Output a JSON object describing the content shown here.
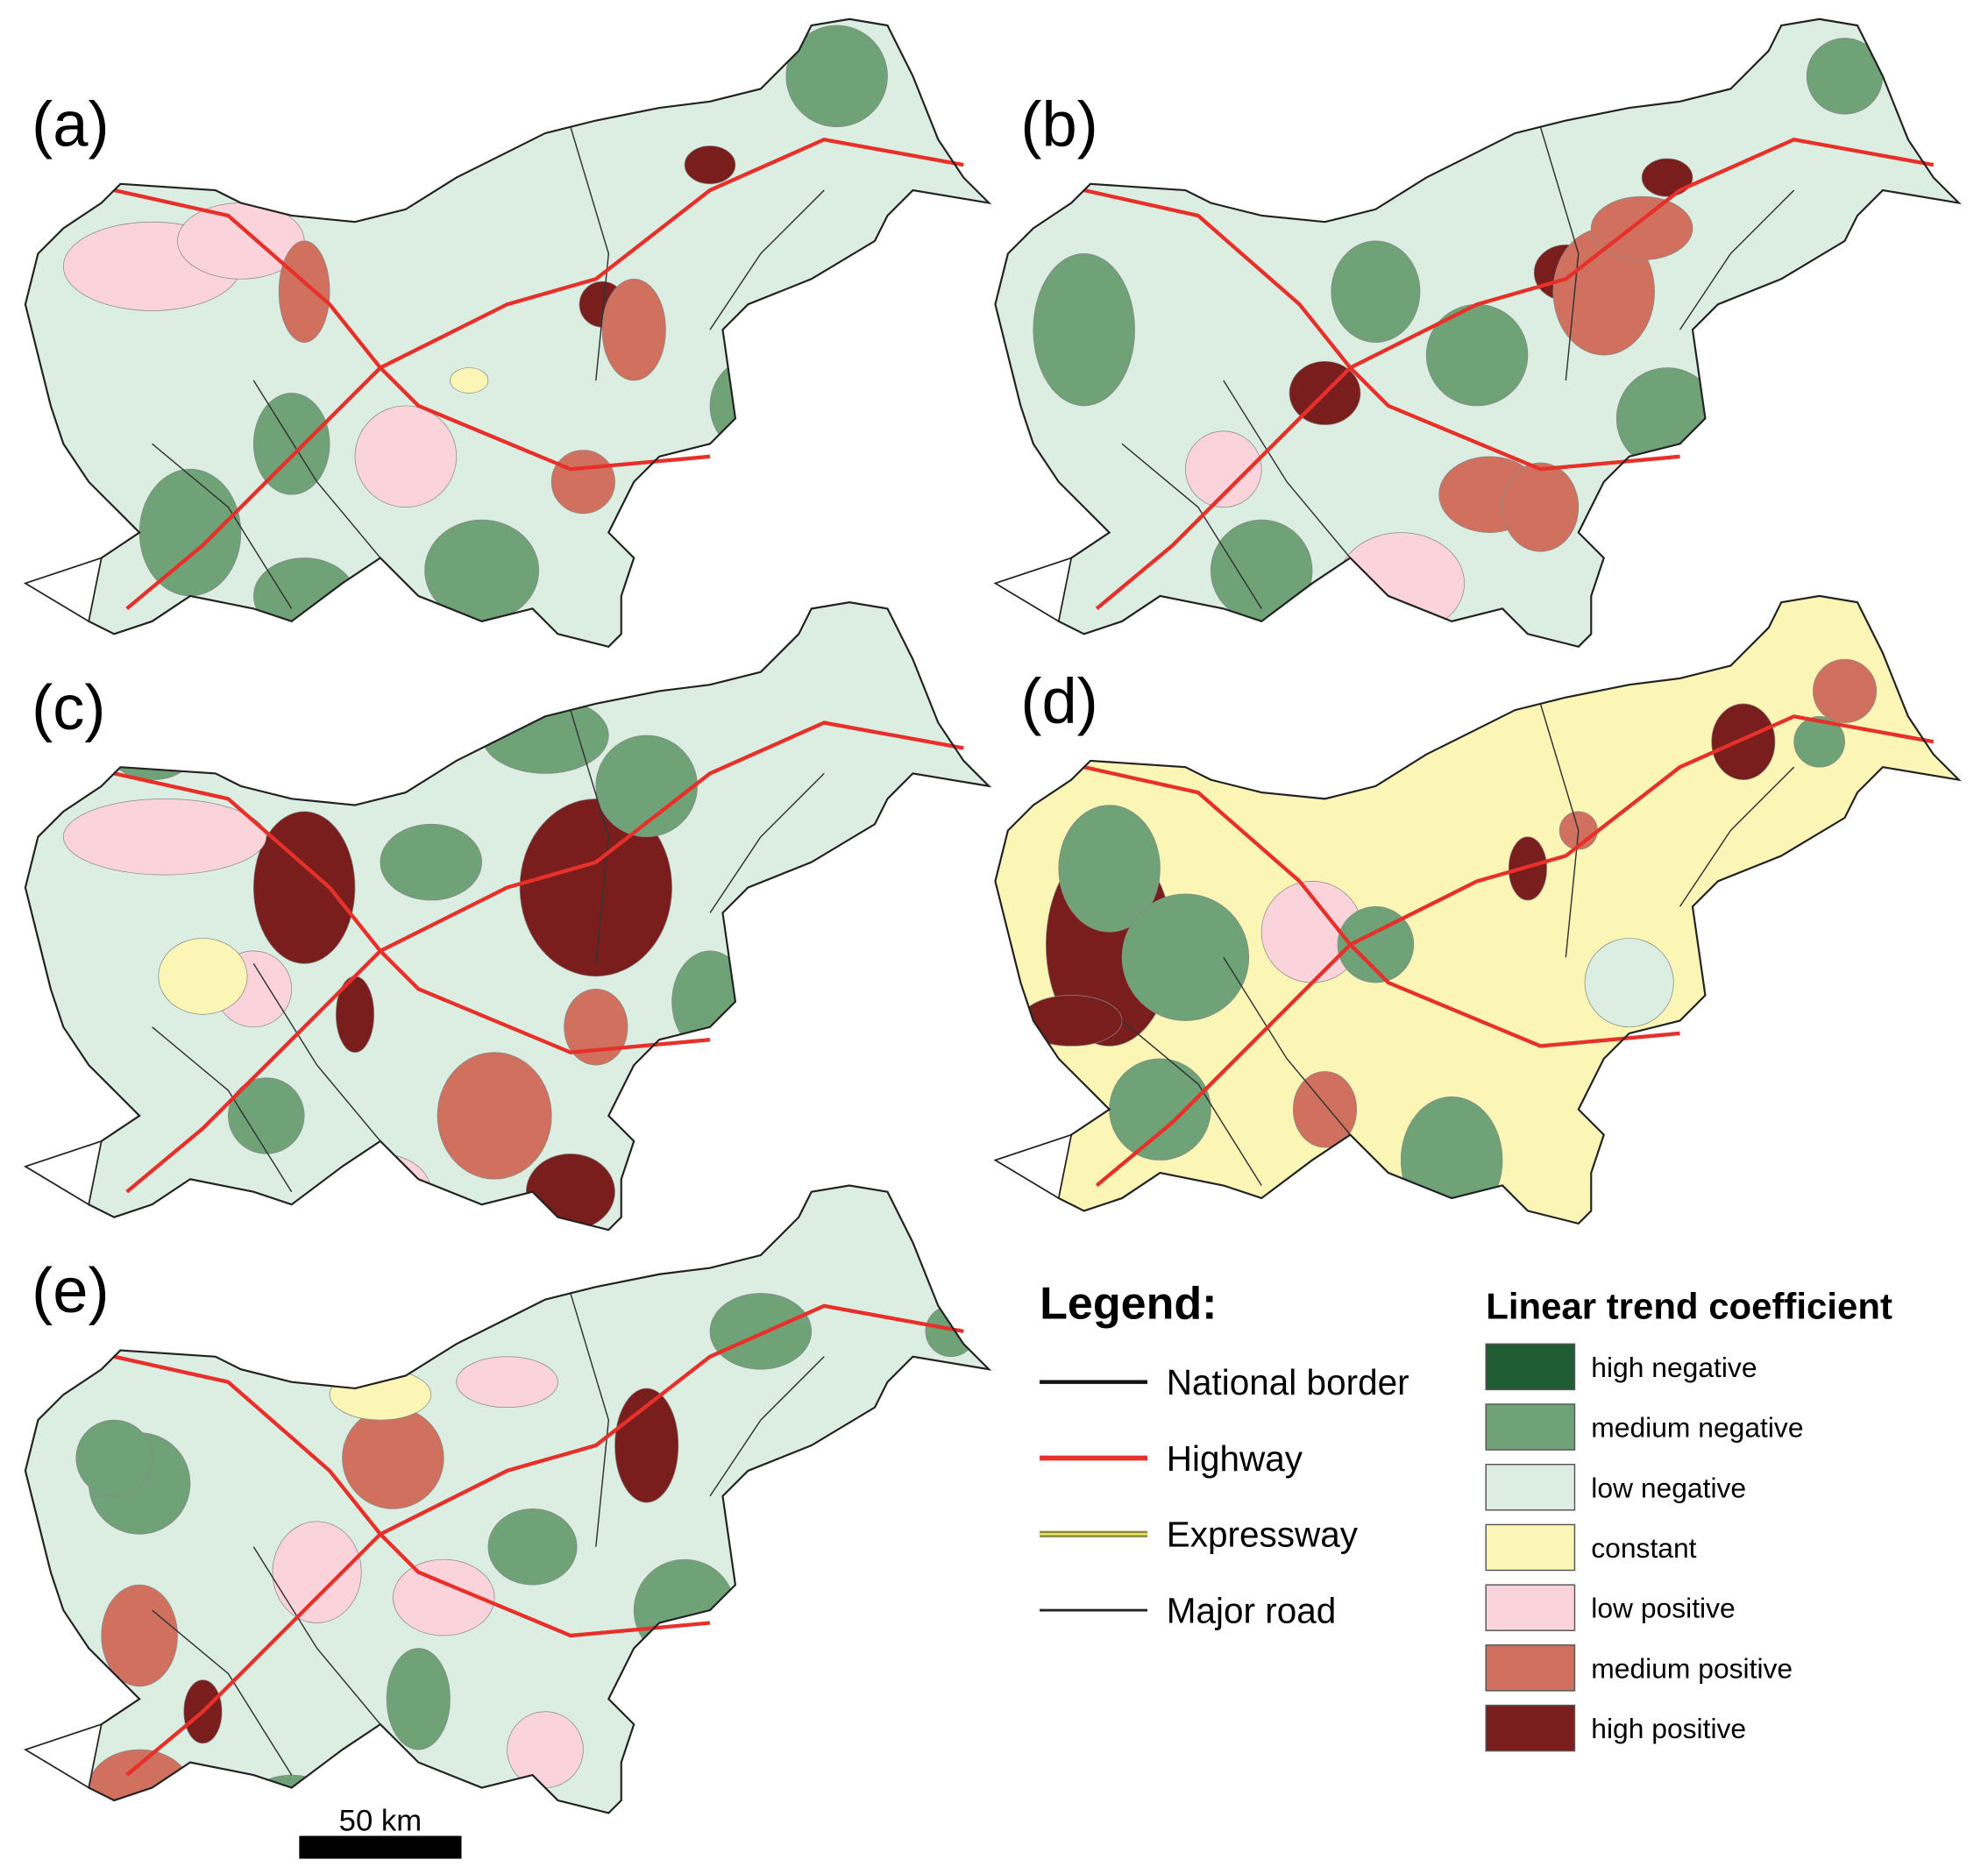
{
  "panels": [
    {
      "label": "(a)"
    },
    {
      "label": "(b)"
    },
    {
      "label": "(c)"
    },
    {
      "label": "(d)"
    },
    {
      "label": "(e)"
    }
  ],
  "legend": {
    "title": "Legend:",
    "lines": [
      {
        "label": "National border"
      },
      {
        "label": "Highway"
      },
      {
        "label": "Expressway"
      },
      {
        "label": "Major road"
      }
    ]
  },
  "trend_legend": {
    "title": "Linear trend coefficient",
    "classes": [
      {
        "label": "high negative",
        "color": "#1f5c33"
      },
      {
        "label": "medium negative",
        "color": "#6fa276"
      },
      {
        "label": "low negative",
        "color": "#dcede2"
      },
      {
        "label": "constant",
        "color": "#fbf6b6"
      },
      {
        "label": "low positive",
        "color": "#fad3db"
      },
      {
        "label": "medium positive",
        "color": "#d0705e"
      },
      {
        "label": "high positive",
        "color": "#7a1d1d"
      }
    ]
  },
  "scale_bar": {
    "label": "50 km"
  }
}
